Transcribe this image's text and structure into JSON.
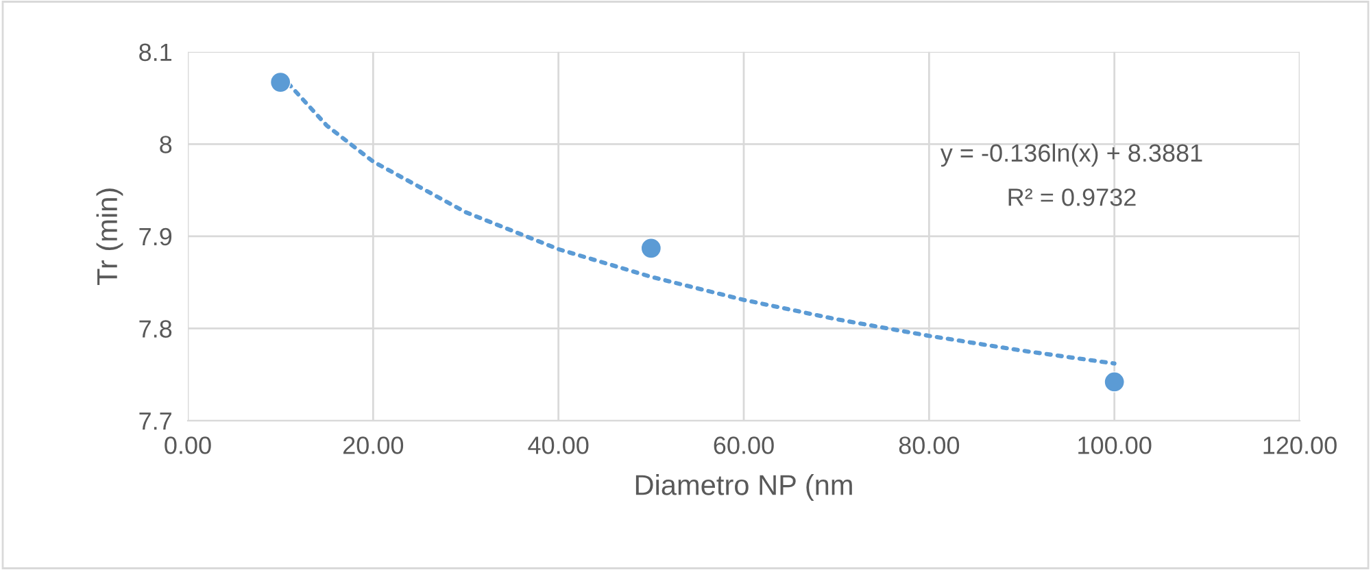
{
  "chart_data": {
    "type": "scatter",
    "xlabel": "Diametro NP (nm",
    "ylabel": "Tr (min)",
    "xlim": [
      0,
      120
    ],
    "xticks": [
      {
        "value": 0,
        "label": "0.00"
      },
      {
        "value": 20,
        "label": "20.00"
      },
      {
        "value": 40,
        "label": "40.00"
      },
      {
        "value": 60,
        "label": "60.00"
      },
      {
        "value": 80,
        "label": "80.00"
      },
      {
        "value": 100,
        "label": "100.00"
      },
      {
        "value": 120,
        "label": "120.00"
      }
    ],
    "ylim": [
      7.7,
      8.1
    ],
    "yticks": [
      7.7,
      7.8,
      7.9,
      {
        "value": 8.0,
        "label": "8"
      },
      8.1
    ],
    "grid": true,
    "series": [
      {
        "type": "scatter",
        "color": "#5b9bd5",
        "marker": "circle",
        "x": [
          10,
          50,
          100
        ],
        "values": [
          8.067,
          7.887,
          7.742
        ]
      },
      {
        "type": "line",
        "color": "#5b9bd5",
        "line_style": "dotted",
        "marker": "none",
        "x": [
          10,
          15,
          20,
          30,
          40,
          50,
          60,
          70,
          80,
          90,
          100
        ],
        "values": [
          8.075,
          8.02,
          7.981,
          7.926,
          7.886,
          7.856,
          7.831,
          7.81,
          7.792,
          7.776,
          7.762
        ]
      }
    ],
    "annotations": [
      "y = -0.136ln(x) + 8.3881",
      "R² = 0.9732"
    ]
  }
}
